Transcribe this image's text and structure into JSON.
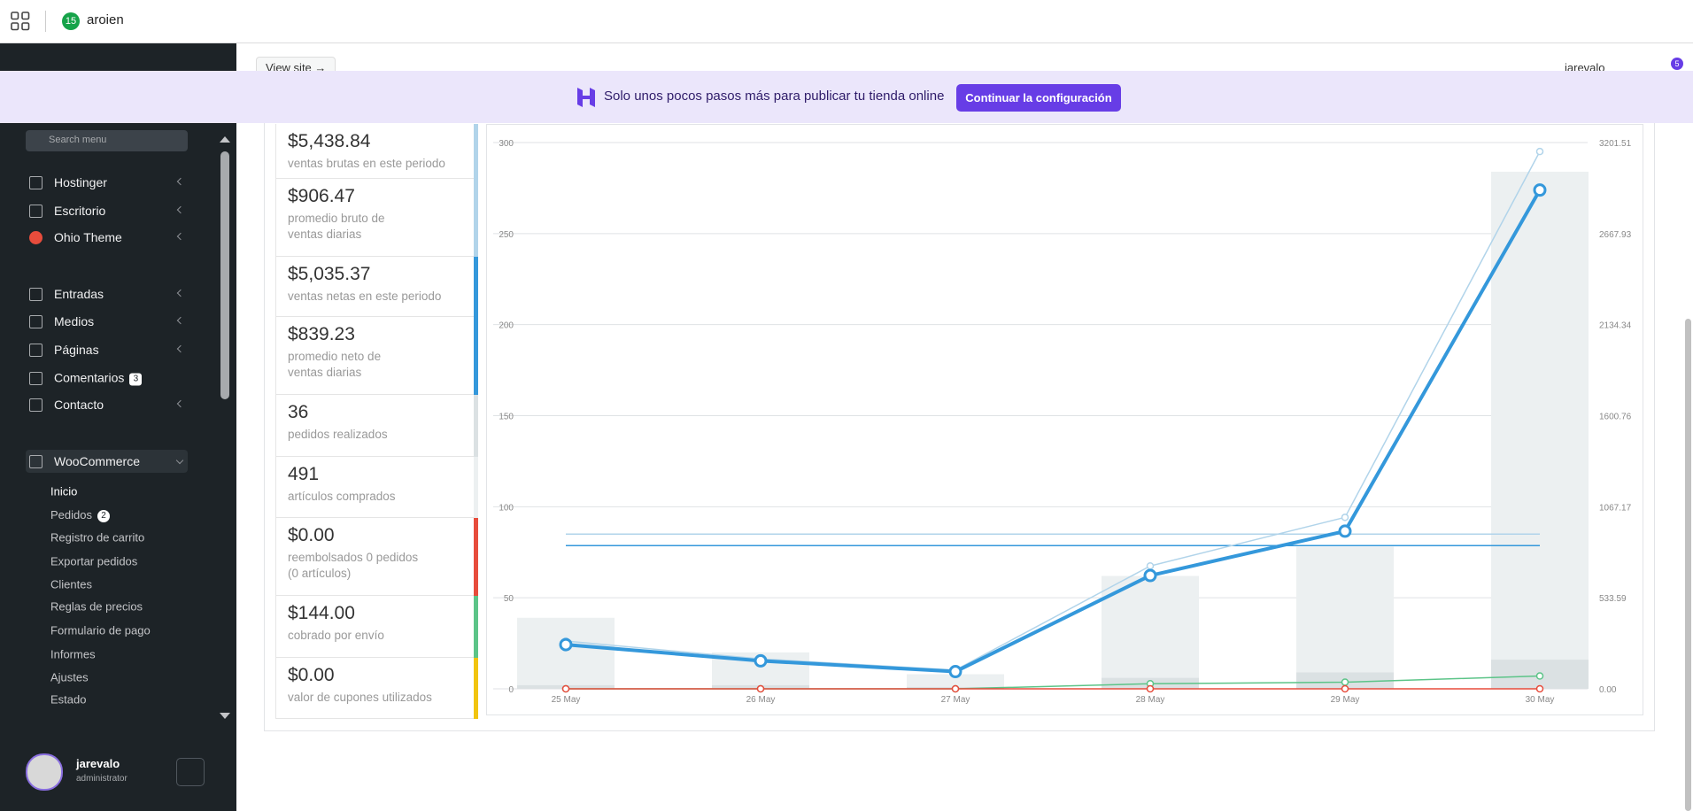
{
  "header": {
    "app_badge": 15,
    "site_name": "aroien"
  },
  "toolbar": {
    "view_site": "View site →",
    "user": "jarevalo",
    "notifications": 5
  },
  "banner": {
    "text": "Solo unos pocos pasos más para publicar tu tienda online",
    "button": "Continuar la configuración"
  },
  "sidebar": {
    "search_placeholder": "Search menu",
    "menu": [
      {
        "label": "Hostinger"
      },
      {
        "label": "Escritorio"
      },
      {
        "label": "Ohio Theme"
      },
      {
        "label": "Entradas"
      },
      {
        "label": "Medios"
      },
      {
        "label": "Páginas"
      },
      {
        "label": "Comentarios",
        "badge": 3
      },
      {
        "label": "Contacto"
      },
      {
        "label": "WooCommerce"
      }
    ],
    "submenu": [
      {
        "label": "Inicio"
      },
      {
        "label": "Pedidos",
        "badge": 2
      },
      {
        "label": "Registro de carrito"
      },
      {
        "label": "Exportar pedidos"
      },
      {
        "label": "Clientes"
      },
      {
        "label": "Reglas de precios"
      },
      {
        "label": "Formulario de pago"
      },
      {
        "label": "Informes"
      },
      {
        "label": "Ajustes"
      },
      {
        "label": "Estado"
      }
    ],
    "user": {
      "name": "jarevalo",
      "role": "administrator"
    }
  },
  "stats": [
    {
      "value": 5438.84,
      "value_label": "$5,438.84",
      "label": [
        "ventas brutas en este periodo"
      ],
      "color": "#b1d4ea"
    },
    {
      "value": 906.47,
      "value_label": "$906.47",
      "label": [
        "promedio bruto de",
        "ventas diarias"
      ],
      "color": "#b1d4ea"
    },
    {
      "value": 5035.37,
      "value_label": "$5,035.37",
      "label": [
        "ventas netas en este periodo"
      ],
      "color": "#3498db"
    },
    {
      "value": 839.23,
      "value_label": "$839.23",
      "label": [
        "promedio neto de",
        "ventas diarias"
      ],
      "color": "#3498db"
    },
    {
      "value": 36,
      "label": [
        "pedidos realizados"
      ],
      "color": "#dbe1e3"
    },
    {
      "value": 491,
      "label": [
        "artículos comprados"
      ],
      "color": "#ecf0f1"
    },
    {
      "value": 0,
      "value_label": "$0.00",
      "label": [
        "reembolsados 0 pedidos",
        "(0 artículos)"
      ],
      "color": "#e74c3c"
    },
    {
      "value": 144,
      "value_label": "$144.00",
      "label": [
        "cobrado por envío"
      ],
      "color": "#5cc488"
    },
    {
      "value": 0,
      "value_label": "$0.00",
      "label": [
        "valor de cupones utilizados"
      ],
      "color": "#f1c40f"
    }
  ],
  "chart": {
    "type": "combo",
    "categories": [
      "25 May",
      "26 May",
      "27 May",
      "28 May",
      "29 May",
      "30 May"
    ],
    "ylim": [
      0,
      300
    ],
    "yticks": [
      0,
      50,
      100,
      150,
      200,
      250,
      300
    ],
    "y2lim": [
      0,
      3201.51
    ],
    "y2ticks": [
      {
        "value": 0,
        "label": "0.00"
      },
      533.59,
      1067.17,
      1600.76,
      2134.34,
      2667.93,
      3201.51
    ],
    "grid": true,
    "series": [
      {
        "type": "bar",
        "color": "#ecf0f1",
        "values": [
          39,
          20,
          8,
          62,
          78,
          284
        ]
      },
      {
        "type": "bar",
        "color": "#dbe1e3",
        "values": [
          2,
          2,
          1,
          6,
          9,
          16
        ]
      },
      {
        "type": "line",
        "axis": "y2",
        "color": "#b1d4ea",
        "width": 1.5,
        "values": [
          280,
          175,
          110,
          720,
          1005,
          3149
        ]
      },
      {
        "type": "line",
        "axis": "y2",
        "color": "#5cc488",
        "width": 1.5,
        "values": [
          0,
          0,
          0,
          30,
          39,
          75
        ]
      },
      {
        "type": "line",
        "axis": "y2",
        "color": "#e74c3c",
        "width": 1.5,
        "values": [
          0,
          0,
          0,
          0,
          0,
          0
        ]
      },
      {
        "type": "line",
        "axis": "y2",
        "color": "#3498db",
        "width": 4,
        "values": [
          259,
          164,
          101,
          664,
          924,
          2923
        ]
      }
    ]
  }
}
